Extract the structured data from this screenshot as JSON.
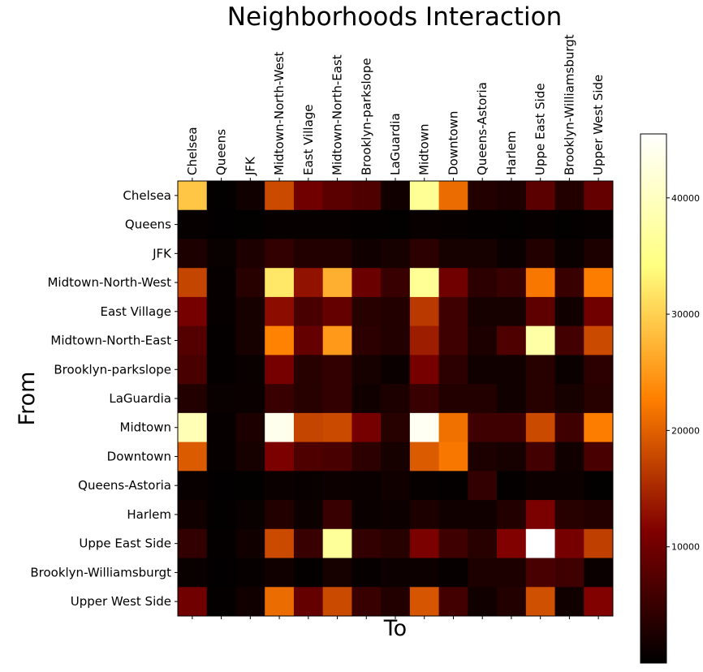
{
  "chart_data": {
    "type": "heatmap",
    "title": "Neighborhoods Interaction",
    "xlabel": "To",
    "ylabel": "From",
    "colormap": "afmhot",
    "colorbar": {
      "min": 0,
      "max": 45500,
      "ticks": [
        10000,
        20000,
        30000,
        40000
      ],
      "tick_labels": [
        "10000",
        "20000",
        "30000",
        "40000"
      ]
    },
    "x_categories": [
      "Chelsea",
      "Queens",
      "JFK",
      "Midtown-North-West",
      "East Village",
      "Midtown-North-East",
      "Brooklyn-parkslope",
      "LaGuardia",
      "Midtown",
      "Downtown",
      "Queens-Astoria",
      "Harlem",
      "Uppe East Side",
      "Brooklyn-Williamsburgt",
      "Upper West Side"
    ],
    "y_categories": [
      "Chelsea",
      "Queens",
      "JFK",
      "Midtown-North-West",
      "East Village",
      "Midtown-North-East",
      "Brooklyn-parkslope",
      "LaGuardia",
      "Midtown",
      "Downtown",
      "Queens-Astoria",
      "Harlem",
      "Uppe East Side",
      "Brooklyn-Williamsburgt",
      "Upper West Side"
    ],
    "values": [
      [
        29000,
        300,
        1500,
        18000,
        10000,
        8000,
        7000,
        1500,
        36000,
        21000,
        3000,
        2500,
        8000,
        3000,
        9000
      ],
      [
        600,
        200,
        300,
        500,
        500,
        500,
        400,
        300,
        700,
        500,
        400,
        300,
        500,
        300,
        500
      ],
      [
        2500,
        800,
        2500,
        4500,
        3000,
        3000,
        1500,
        2000,
        4000,
        2000,
        2000,
        1000,
        3000,
        1000,
        2500
      ],
      [
        17500,
        500,
        3500,
        32000,
        13000,
        27000,
        9500,
        5000,
        36000,
        10000,
        4000,
        5000,
        22000,
        5000,
        22500
      ],
      [
        10500,
        500,
        2000,
        12500,
        6500,
        9000,
        3500,
        3000,
        16500,
        5500,
        2000,
        2000,
        8500,
        1500,
        10000
      ],
      [
        7500,
        400,
        2000,
        23000,
        9000,
        25000,
        4000,
        3000,
        14000,
        5500,
        2500,
        7000,
        37500,
        6000,
        18000
      ],
      [
        6500,
        400,
        800,
        10500,
        3500,
        4500,
        2000,
        1000,
        10500,
        4000,
        1500,
        1500,
        3500,
        1000,
        4000
      ],
      [
        3000,
        800,
        1000,
        5000,
        3500,
        4500,
        1500,
        2500,
        5000,
        3000,
        3000,
        1500,
        3500,
        2000,
        3500
      ],
      [
        39000,
        500,
        2500,
        44000,
        17500,
        18000,
        10500,
        3500,
        44500,
        21500,
        5500,
        5500,
        18000,
        5500,
        22500
      ],
      [
        19500,
        500,
        2000,
        11000,
        7000,
        6500,
        4000,
        2000,
        19500,
        22000,
        2500,
        2000,
        6000,
        1500,
        6500
      ],
      [
        700,
        200,
        300,
        1000,
        700,
        1200,
        900,
        1500,
        500,
        400,
        4500,
        400,
        1200,
        1200,
        300
      ],
      [
        1500,
        300,
        800,
        3000,
        1200,
        5000,
        1000,
        1200,
        2500,
        1500,
        1500,
        3000,
        11000,
        3500,
        3000
      ],
      [
        4500,
        400,
        1500,
        18000,
        5000,
        36500,
        4500,
        3500,
        11000,
        5500,
        3500,
        11500,
        45500,
        10500,
        17000
      ],
      [
        800,
        200,
        500,
        1500,
        400,
        2000,
        500,
        1200,
        1200,
        500,
        2500,
        2500,
        6500,
        5500,
        1000
      ],
      [
        10000,
        400,
        1500,
        21000,
        9000,
        18000,
        5000,
        3000,
        19000,
        6000,
        1500,
        3000,
        18500,
        1500,
        11500
      ]
    ]
  }
}
